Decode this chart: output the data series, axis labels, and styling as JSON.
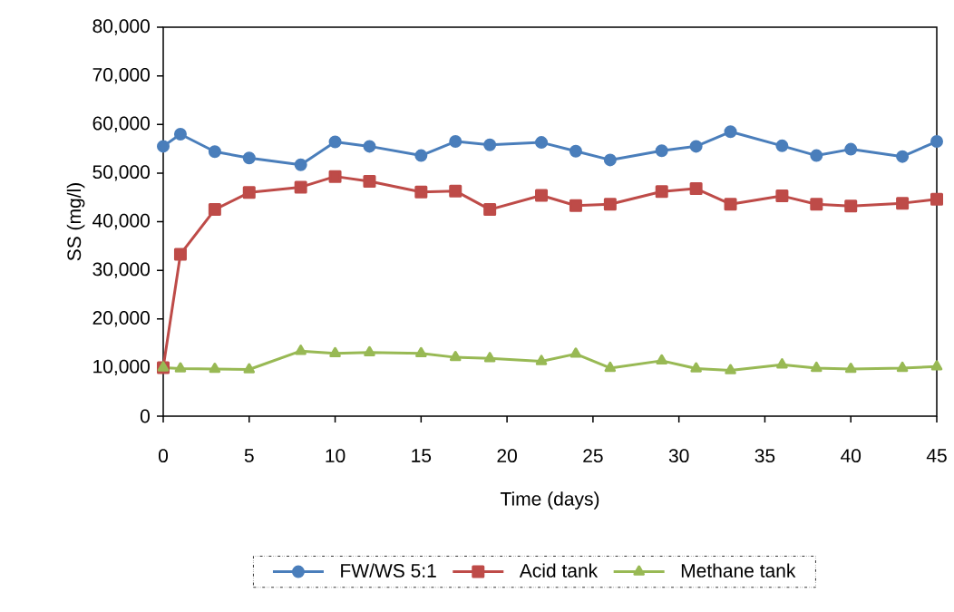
{
  "chart_data": {
    "type": "line",
    "xlabel": "Time (days)",
    "ylabel": "SS (mg/l)",
    "x": [
      0,
      1,
      3,
      5,
      8,
      10,
      12,
      15,
      17,
      19,
      22,
      24,
      26,
      29,
      31,
      33,
      36,
      38,
      40,
      43,
      45
    ],
    "series": [
      {
        "name": "FW/WS 5:1",
        "color": "#4a7ebb",
        "marker": "circle",
        "values": [
          55500,
          58000,
          54400,
          53100,
          51700,
          56400,
          55500,
          53600,
          56500,
          55800,
          56300,
          54500,
          52700,
          54600,
          55500,
          58500,
          55600,
          53600,
          54900,
          53400,
          56500
        ]
      },
      {
        "name": "Acid tank",
        "color": "#be4b48",
        "marker": "square",
        "values": [
          10000,
          33300,
          42500,
          46000,
          47100,
          49300,
          48300,
          46100,
          46300,
          42500,
          45400,
          43300,
          43600,
          46200,
          46800,
          43600,
          45300,
          43600,
          43200,
          43800,
          44600
        ]
      },
      {
        "name": "Methane tank",
        "color": "#98b954",
        "marker": "triangle",
        "values": [
          10000,
          9800,
          9700,
          9600,
          13400,
          12900,
          13100,
          12900,
          12100,
          11900,
          11300,
          12800,
          9900,
          11400,
          9800,
          9400,
          10600,
          9900,
          9700,
          9900,
          10200
        ]
      }
    ],
    "xlim": [
      0,
      45
    ],
    "xticks": [
      0,
      5,
      10,
      15,
      20,
      25,
      30,
      35,
      40,
      45
    ],
    "ylim": [
      0,
      80000
    ],
    "yticks": [
      0,
      {
        "value": 10000,
        "label": "10,000"
      },
      {
        "value": 20000,
        "label": "20,000"
      },
      {
        "value": 30000,
        "label": "30,000"
      },
      {
        "value": 40000,
        "label": "40,000"
      },
      {
        "value": 50000,
        "label": "50,000"
      },
      {
        "value": 60000,
        "label": "60,000"
      },
      {
        "value": 70000,
        "label": "70,000"
      },
      {
        "value": 80000,
        "label": "80,000"
      }
    ],
    "grid": false,
    "legend": "bottom",
    "line_style": "solid"
  }
}
